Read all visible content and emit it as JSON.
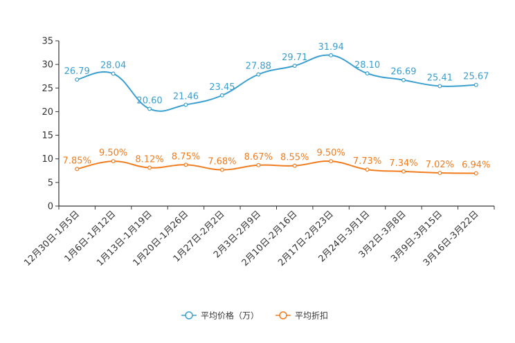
{
  "chart_data": {
    "type": "line",
    "title": "",
    "xlabel": "",
    "ylabel": "",
    "ylim": [
      0,
      35
    ],
    "yticks": [
      0,
      5,
      10,
      15,
      20,
      25,
      30,
      35
    ],
    "grid": false,
    "legend_position": "bottom-center",
    "categories": [
      "12月30日-1月5日",
      "1月6日-1月12日",
      "1月13日-1月19日",
      "1月20日-1月26日",
      "1月27日-2月2日",
      "2月3日-2月9日",
      "2月10日-2月16日",
      "2月17日-2月23日",
      "2月24日-3月1日",
      "3月2日-3月8日",
      "3月9日-3月15日",
      "3月16日-3月22日"
    ],
    "series": [
      {
        "name": "平均价格（万）",
        "color": "#3a9fcf",
        "values": [
          26.79,
          28.04,
          20.6,
          21.46,
          23.45,
          27.88,
          29.71,
          31.94,
          28.1,
          26.69,
          25.41,
          25.67
        ],
        "labels": [
          "26.79",
          "28.04",
          "20.60",
          "21.46",
          "23.45",
          "27.88",
          "29.71",
          "31.94",
          "28.10",
          "26.69",
          "25.41",
          "25.67"
        ]
      },
      {
        "name": "平均折扣",
        "color": "#f07c1e",
        "values": [
          7.85,
          9.5,
          8.12,
          8.75,
          7.68,
          8.67,
          8.55,
          9.5,
          7.73,
          7.34,
          7.02,
          6.94
        ],
        "labels": [
          "7.85%",
          "9.50%",
          "8.12%",
          "8.75%",
          "7.68%",
          "8.67%",
          "8.55%",
          "9.50%",
          "7.73%",
          "7.34%",
          "7.02%",
          "6.94%"
        ]
      }
    ]
  }
}
